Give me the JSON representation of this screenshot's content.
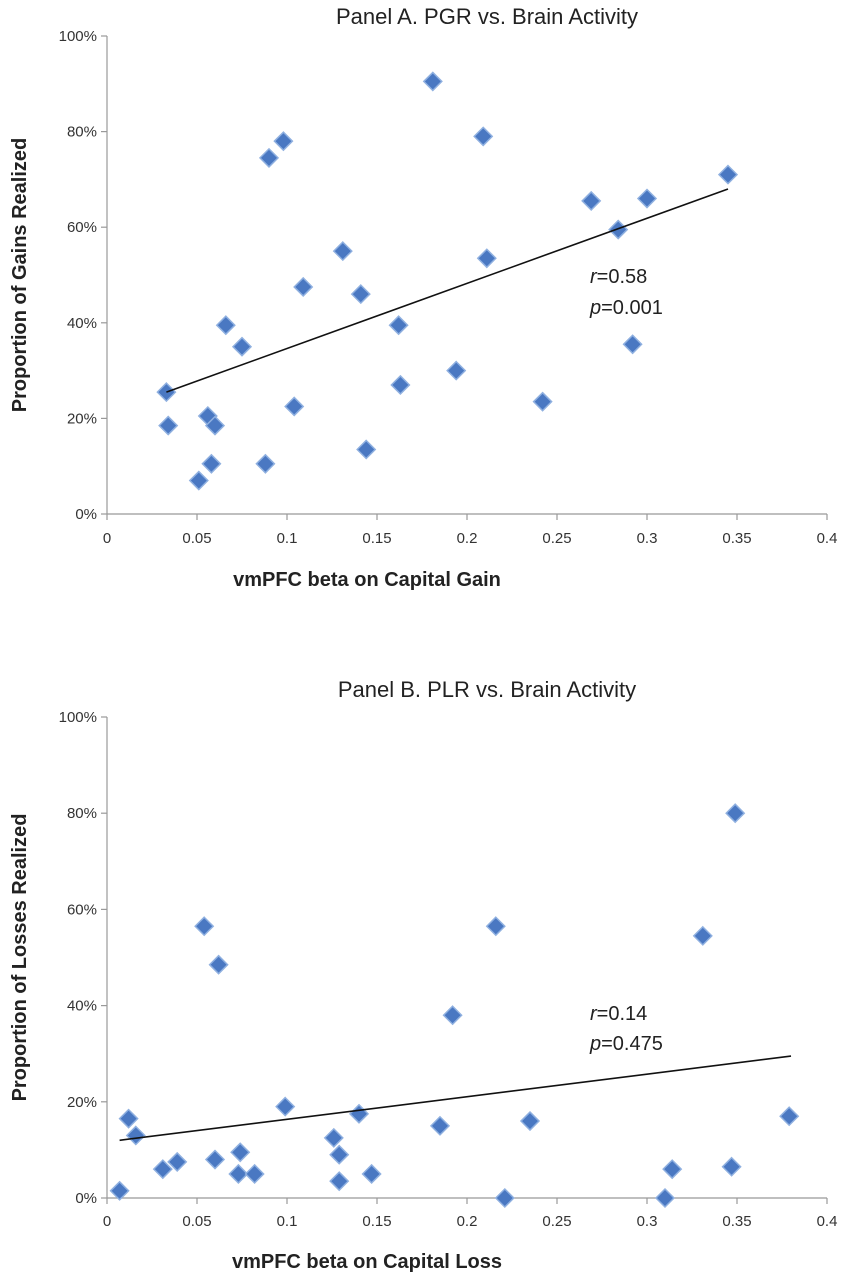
{
  "chart_data": [
    {
      "type": "scatter",
      "title": "Panel A. PGR vs. Brain Activity",
      "xlabel": "vmPFC beta on Capital Gain",
      "ylabel": "Proportion of Gains Realized",
      "xlim": [
        0,
        0.4
      ],
      "ylim": [
        0,
        1
      ],
      "x_ticks": [
        "0",
        "0.05",
        "0.1",
        "0.15",
        "0.2",
        "0.25",
        "0.3",
        "0.35",
        "0.4"
      ],
      "y_ticks": [
        "0%",
        "20%",
        "40%",
        "60%",
        "80%",
        "100%"
      ],
      "marker_color": "#4a78c2",
      "trendline": {
        "x": [
          0.033,
          0.345
        ],
        "y": [
          0.255,
          0.68
        ]
      },
      "annotation": {
        "r_label": "r",
        "r_value": "=0.58",
        "p_label": "p",
        "p_value": "=0.001"
      },
      "points": [
        {
          "x": 0.033,
          "y": 0.255
        },
        {
          "x": 0.034,
          "y": 0.185
        },
        {
          "x": 0.051,
          "y": 0.07
        },
        {
          "x": 0.056,
          "y": 0.205
        },
        {
          "x": 0.058,
          "y": 0.105
        },
        {
          "x": 0.06,
          "y": 0.185
        },
        {
          "x": 0.066,
          "y": 0.395
        },
        {
          "x": 0.075,
          "y": 0.35
        },
        {
          "x": 0.088,
          "y": 0.105
        },
        {
          "x": 0.09,
          "y": 0.745
        },
        {
          "x": 0.098,
          "y": 0.78
        },
        {
          "x": 0.104,
          "y": 0.225
        },
        {
          "x": 0.109,
          "y": 0.475
        },
        {
          "x": 0.131,
          "y": 0.55
        },
        {
          "x": 0.141,
          "y": 0.46
        },
        {
          "x": 0.144,
          "y": 0.135
        },
        {
          "x": 0.162,
          "y": 0.395
        },
        {
          "x": 0.163,
          "y": 0.27
        },
        {
          "x": 0.181,
          "y": 0.905
        },
        {
          "x": 0.194,
          "y": 0.3
        },
        {
          "x": 0.209,
          "y": 0.79
        },
        {
          "x": 0.211,
          "y": 0.535
        },
        {
          "x": 0.242,
          "y": 0.235
        },
        {
          "x": 0.269,
          "y": 0.655
        },
        {
          "x": 0.284,
          "y": 0.595
        },
        {
          "x": 0.292,
          "y": 0.355
        },
        {
          "x": 0.3,
          "y": 0.66
        },
        {
          "x": 0.345,
          "y": 0.71
        }
      ]
    },
    {
      "type": "scatter",
      "title": "Panel B. PLR vs. Brain Activity",
      "xlabel": "vmPFC beta on Capital Loss",
      "ylabel": "Proportion of Losses Realized",
      "xlim": [
        0,
        0.4
      ],
      "ylim": [
        0,
        1
      ],
      "x_ticks": [
        "0",
        "0.05",
        "0.1",
        "0.15",
        "0.2",
        "0.25",
        "0.3",
        "0.35",
        "0.4"
      ],
      "y_ticks": [
        "0%",
        "20%",
        "40%",
        "60%",
        "80%",
        "100%"
      ],
      "marker_color": "#4a78c2",
      "trendline": {
        "x": [
          0.007,
          0.38
        ],
        "y": [
          0.12,
          0.295
        ]
      },
      "annotation": {
        "r_label": "r",
        "r_value": "=0.14",
        "p_label": "p",
        "p_value": "=0.475"
      },
      "points": [
        {
          "x": 0.007,
          "y": 0.015
        },
        {
          "x": 0.012,
          "y": 0.165
        },
        {
          "x": 0.016,
          "y": 0.13
        },
        {
          "x": 0.031,
          "y": 0.06
        },
        {
          "x": 0.039,
          "y": 0.075
        },
        {
          "x": 0.054,
          "y": 0.565
        },
        {
          "x": 0.06,
          "y": 0.08
        },
        {
          "x": 0.062,
          "y": 0.485
        },
        {
          "x": 0.073,
          "y": 0.05
        },
        {
          "x": 0.074,
          "y": 0.095
        },
        {
          "x": 0.082,
          "y": 0.05
        },
        {
          "x": 0.099,
          "y": 0.19
        },
        {
          "x": 0.126,
          "y": 0.125
        },
        {
          "x": 0.129,
          "y": 0.035
        },
        {
          "x": 0.129,
          "y": 0.09
        },
        {
          "x": 0.14,
          "y": 0.175
        },
        {
          "x": 0.147,
          "y": 0.05
        },
        {
          "x": 0.185,
          "y": 0.15
        },
        {
          "x": 0.192,
          "y": 0.38
        },
        {
          "x": 0.216,
          "y": 0.565
        },
        {
          "x": 0.221,
          "y": 0.0
        },
        {
          "x": 0.235,
          "y": 0.16
        },
        {
          "x": 0.31,
          "y": 0.0
        },
        {
          "x": 0.314,
          "y": 0.06
        },
        {
          "x": 0.331,
          "y": 0.545
        },
        {
          "x": 0.347,
          "y": 0.065
        },
        {
          "x": 0.349,
          "y": 0.8
        },
        {
          "x": 0.379,
          "y": 0.17
        }
      ]
    }
  ]
}
